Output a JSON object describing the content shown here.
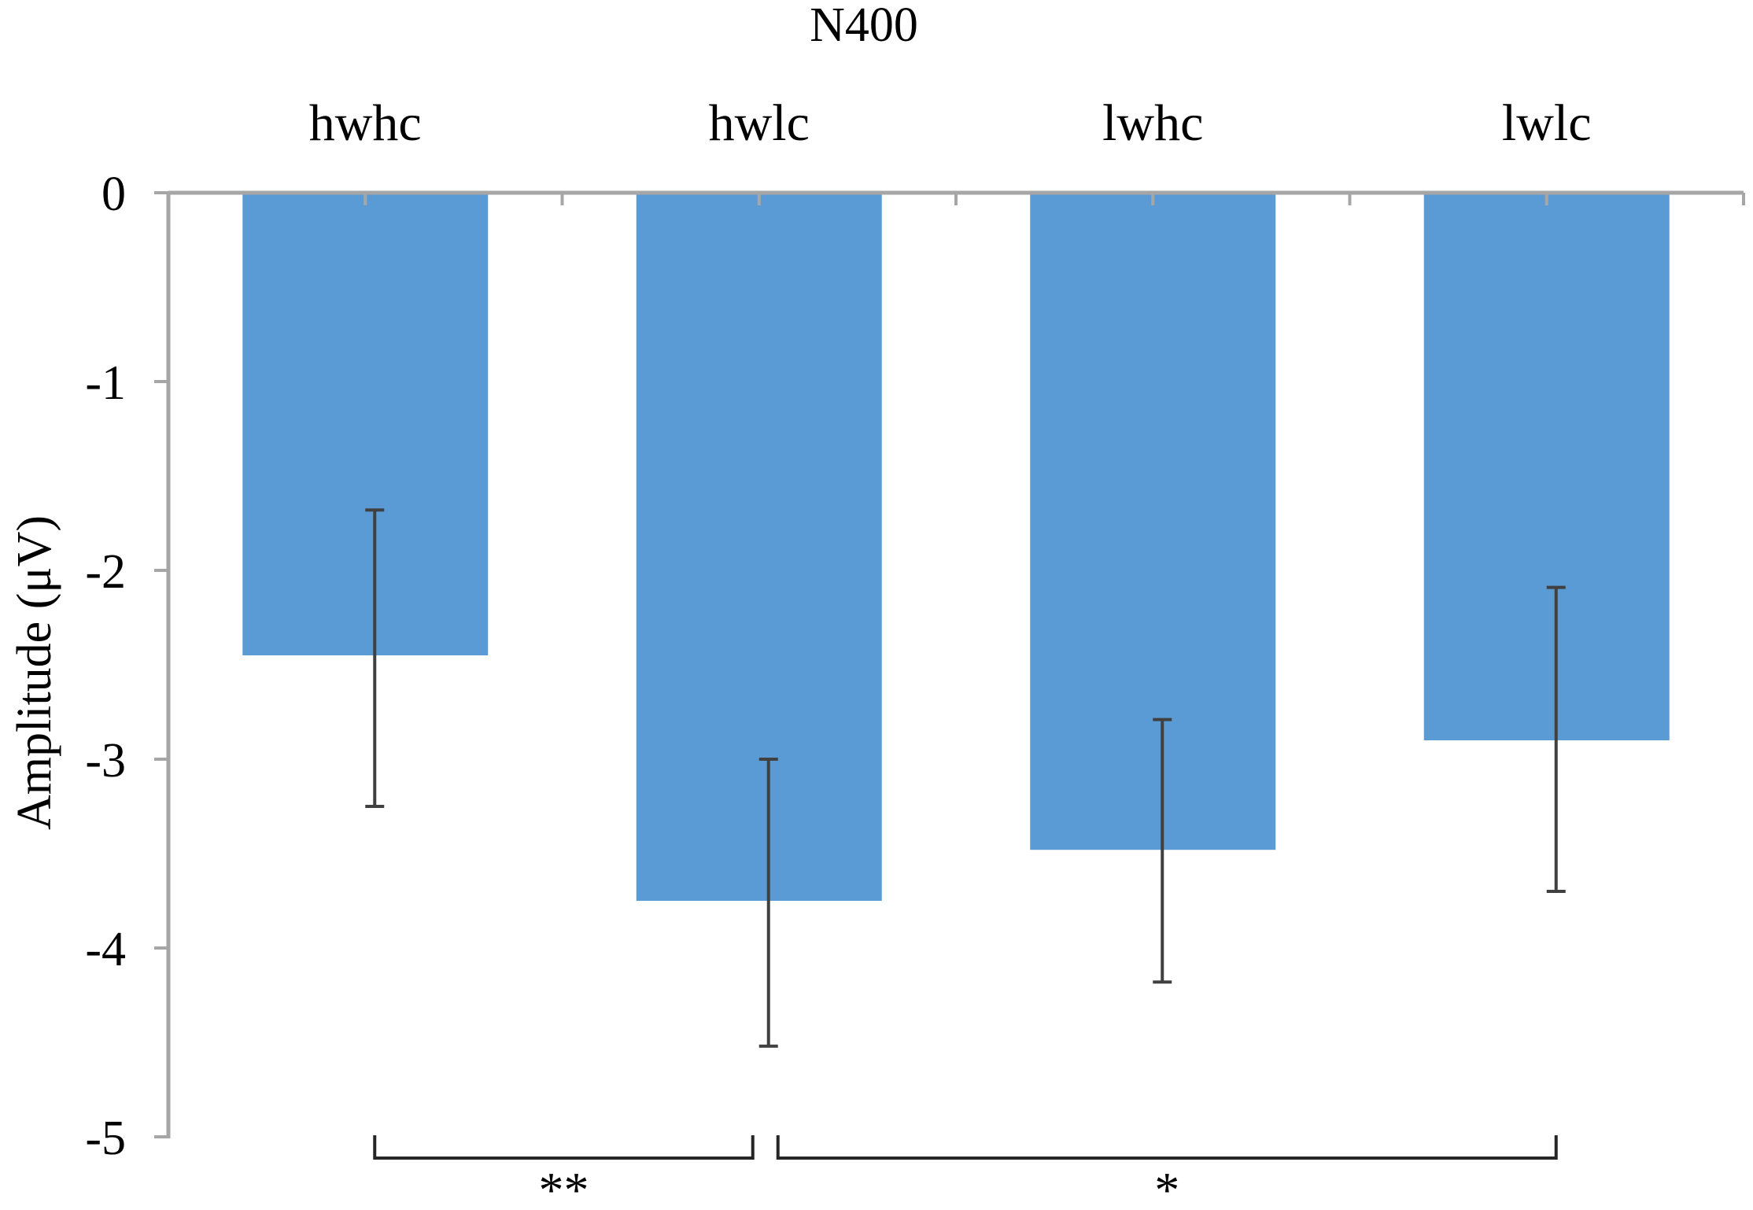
{
  "chart_data": {
    "type": "bar",
    "title": "N400",
    "xlabel": "",
    "ylabel": "Amplitude  (μV)",
    "categories": [
      "hwhc",
      "hwlc",
      "lwhc",
      "lwlc"
    ],
    "values": [
      -2.45,
      -3.75,
      -3.48,
      -2.9
    ],
    "error_low": [
      -3.25,
      -4.52,
      -4.18,
      -3.7
    ],
    "error_high": [
      -1.68,
      -3.0,
      -2.79,
      -2.09
    ],
    "ylim": [
      -5,
      0
    ],
    "yticks": [
      "0",
      "-1",
      "-2",
      "-3",
      "-4",
      "-5"
    ],
    "x_axis_position": "top",
    "grid": false,
    "colors": {
      "bar": "#5B9BD5",
      "axis": "#A6A6A6",
      "errorbar": "#404040",
      "bracket": "#262626"
    },
    "significance": [
      {
        "from": "hwhc",
        "to": "hwlc",
        "label": "**"
      },
      {
        "from": "hwlc",
        "to": "lwlc",
        "label": "*"
      }
    ]
  }
}
